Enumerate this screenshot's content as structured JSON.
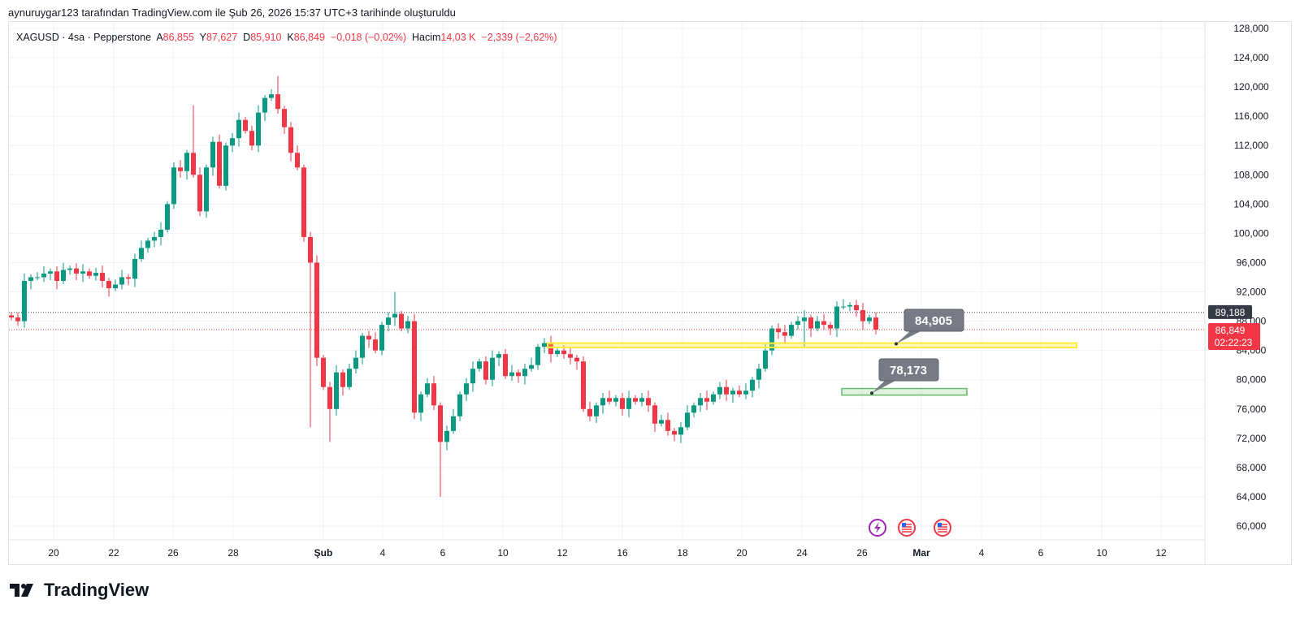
{
  "caption": "aynuruygar123 tarafından TradingView.com ile Şub 26, 2026 15:37 UTC+3 tarihinde oluşturuldu",
  "legend": {
    "symbol": "XAGUSD · 4sa · Pepperstone",
    "o_label": "A",
    "o": "86,855",
    "h_label": "Y",
    "h": "87,627",
    "l_label": "D",
    "l": "85,910",
    "c_label": "K",
    "c": "86,849",
    "change": "−0,018 (−0,02%)",
    "vol_label": "Hacim",
    "vol": "14,03 K",
    "vol_change": "−2,339 (−2,62%)"
  },
  "logo": "TradingView",
  "colors": {
    "up": "#089981",
    "down": "#f23645",
    "zone_yellow": "#ffeb3b",
    "zone_green": "#a5d6a7",
    "callout": "#787b86"
  },
  "chart_data": {
    "type": "candlestick",
    "unit": "price",
    "ylim": [
      58000,
      130000
    ],
    "y_ticks": [
      "128,000",
      "124,000",
      "120,000",
      "116,000",
      "112,000",
      "108,000",
      "104,000",
      "100,000",
      "96,000",
      "92,000",
      "88,000",
      "84,000",
      "80,000",
      "76,000",
      "72,000",
      "68,000",
      "64,000",
      "60,000"
    ],
    "y_tick_values": [
      128000,
      124000,
      120000,
      116000,
      112000,
      108000,
      104000,
      100000,
      96000,
      92000,
      88000,
      84000,
      80000,
      76000,
      72000,
      68000,
      64000,
      60000
    ],
    "x_ticks": [
      "20",
      "22",
      "26",
      "28",
      "Şub",
      "4",
      "6",
      "10",
      "12",
      "16",
      "18",
      "20",
      "24",
      "26",
      "Mar",
      "4",
      "6",
      "10",
      "12"
    ],
    "closes_k": [
      88.5,
      88.0,
      93.5,
      94.0,
      94.0,
      94.5,
      94.8,
      93.5,
      95.0,
      95.2,
      94.5,
      94.8,
      94.2,
      94.6,
      93.5,
      92.5,
      93.0,
      94.0,
      93.8,
      96.5,
      98.0,
      99.0,
      99.5,
      100.5,
      104.0,
      109.0,
      108.5,
      111.0,
      108.0,
      103.0,
      109.0,
      112.5,
      106.5,
      112.0,
      113.0,
      115.5,
      114.0,
      112.0,
      116.5,
      118.5,
      119.0,
      117.0,
      114.5,
      111.0,
      109.0,
      99.5,
      96.0,
      83.0,
      79.0,
      76.0,
      81.0,
      79.0,
      81.5,
      83.0,
      86.0,
      85.5,
      84.0,
      87.5,
      88.5,
      89.0,
      87.0,
      88.0,
      75.5,
      78.0,
      79.5,
      76.5,
      71.5,
      73.0,
      75.0,
      78.0,
      79.5,
      81.5,
      82.5,
      80.0,
      83.0,
      83.5,
      80.5,
      81.0,
      80.5,
      81.5,
      82.0,
      84.5,
      85.0,
      83.5,
      84.0,
      83.5,
      83.0,
      82.5,
      76.0,
      75.0,
      76.5,
      77.5,
      77.0,
      77.5,
      76.0,
      77.5,
      77.0,
      77.5,
      76.5,
      74.0,
      74.5,
      73.0,
      72.5,
      73.5,
      75.5,
      76.5,
      77.5,
      77.0,
      78.0,
      79.0,
      78.0,
      78.5,
      78.0,
      78.5,
      80.0,
      81.5,
      84.0,
      87.0,
      86.5,
      86.0,
      87.5,
      88.0,
      88.5,
      87.0,
      88.0,
      87.5,
      87.0,
      90.0,
      90.0,
      90.2,
      89.5,
      88.0,
      88.5,
      86.849
    ],
    "wick_highs_k": {
      "28": 117.5,
      "41": 121.5,
      "59": 92.0
    },
    "wick_lows_k": {
      "46": 73.5,
      "49": 71.5,
      "66": 64.0,
      "122": 84.5
    },
    "price_lines": [
      {
        "label": "89,188",
        "value": 89188,
        "color": "#363a45"
      },
      {
        "label": "86,849",
        "value": 86849,
        "color": "#f23645",
        "countdown": "02:22:23"
      }
    ],
    "zones": [
      {
        "name": "yellow-zone",
        "top": 85000,
        "bottom": 84400
      },
      {
        "name": "green-zone",
        "top": 78800,
        "bottom": 77900
      }
    ],
    "callouts": [
      {
        "label": "84,905",
        "value": 84905
      },
      {
        "label": "78,173",
        "value": 78173
      }
    ]
  }
}
